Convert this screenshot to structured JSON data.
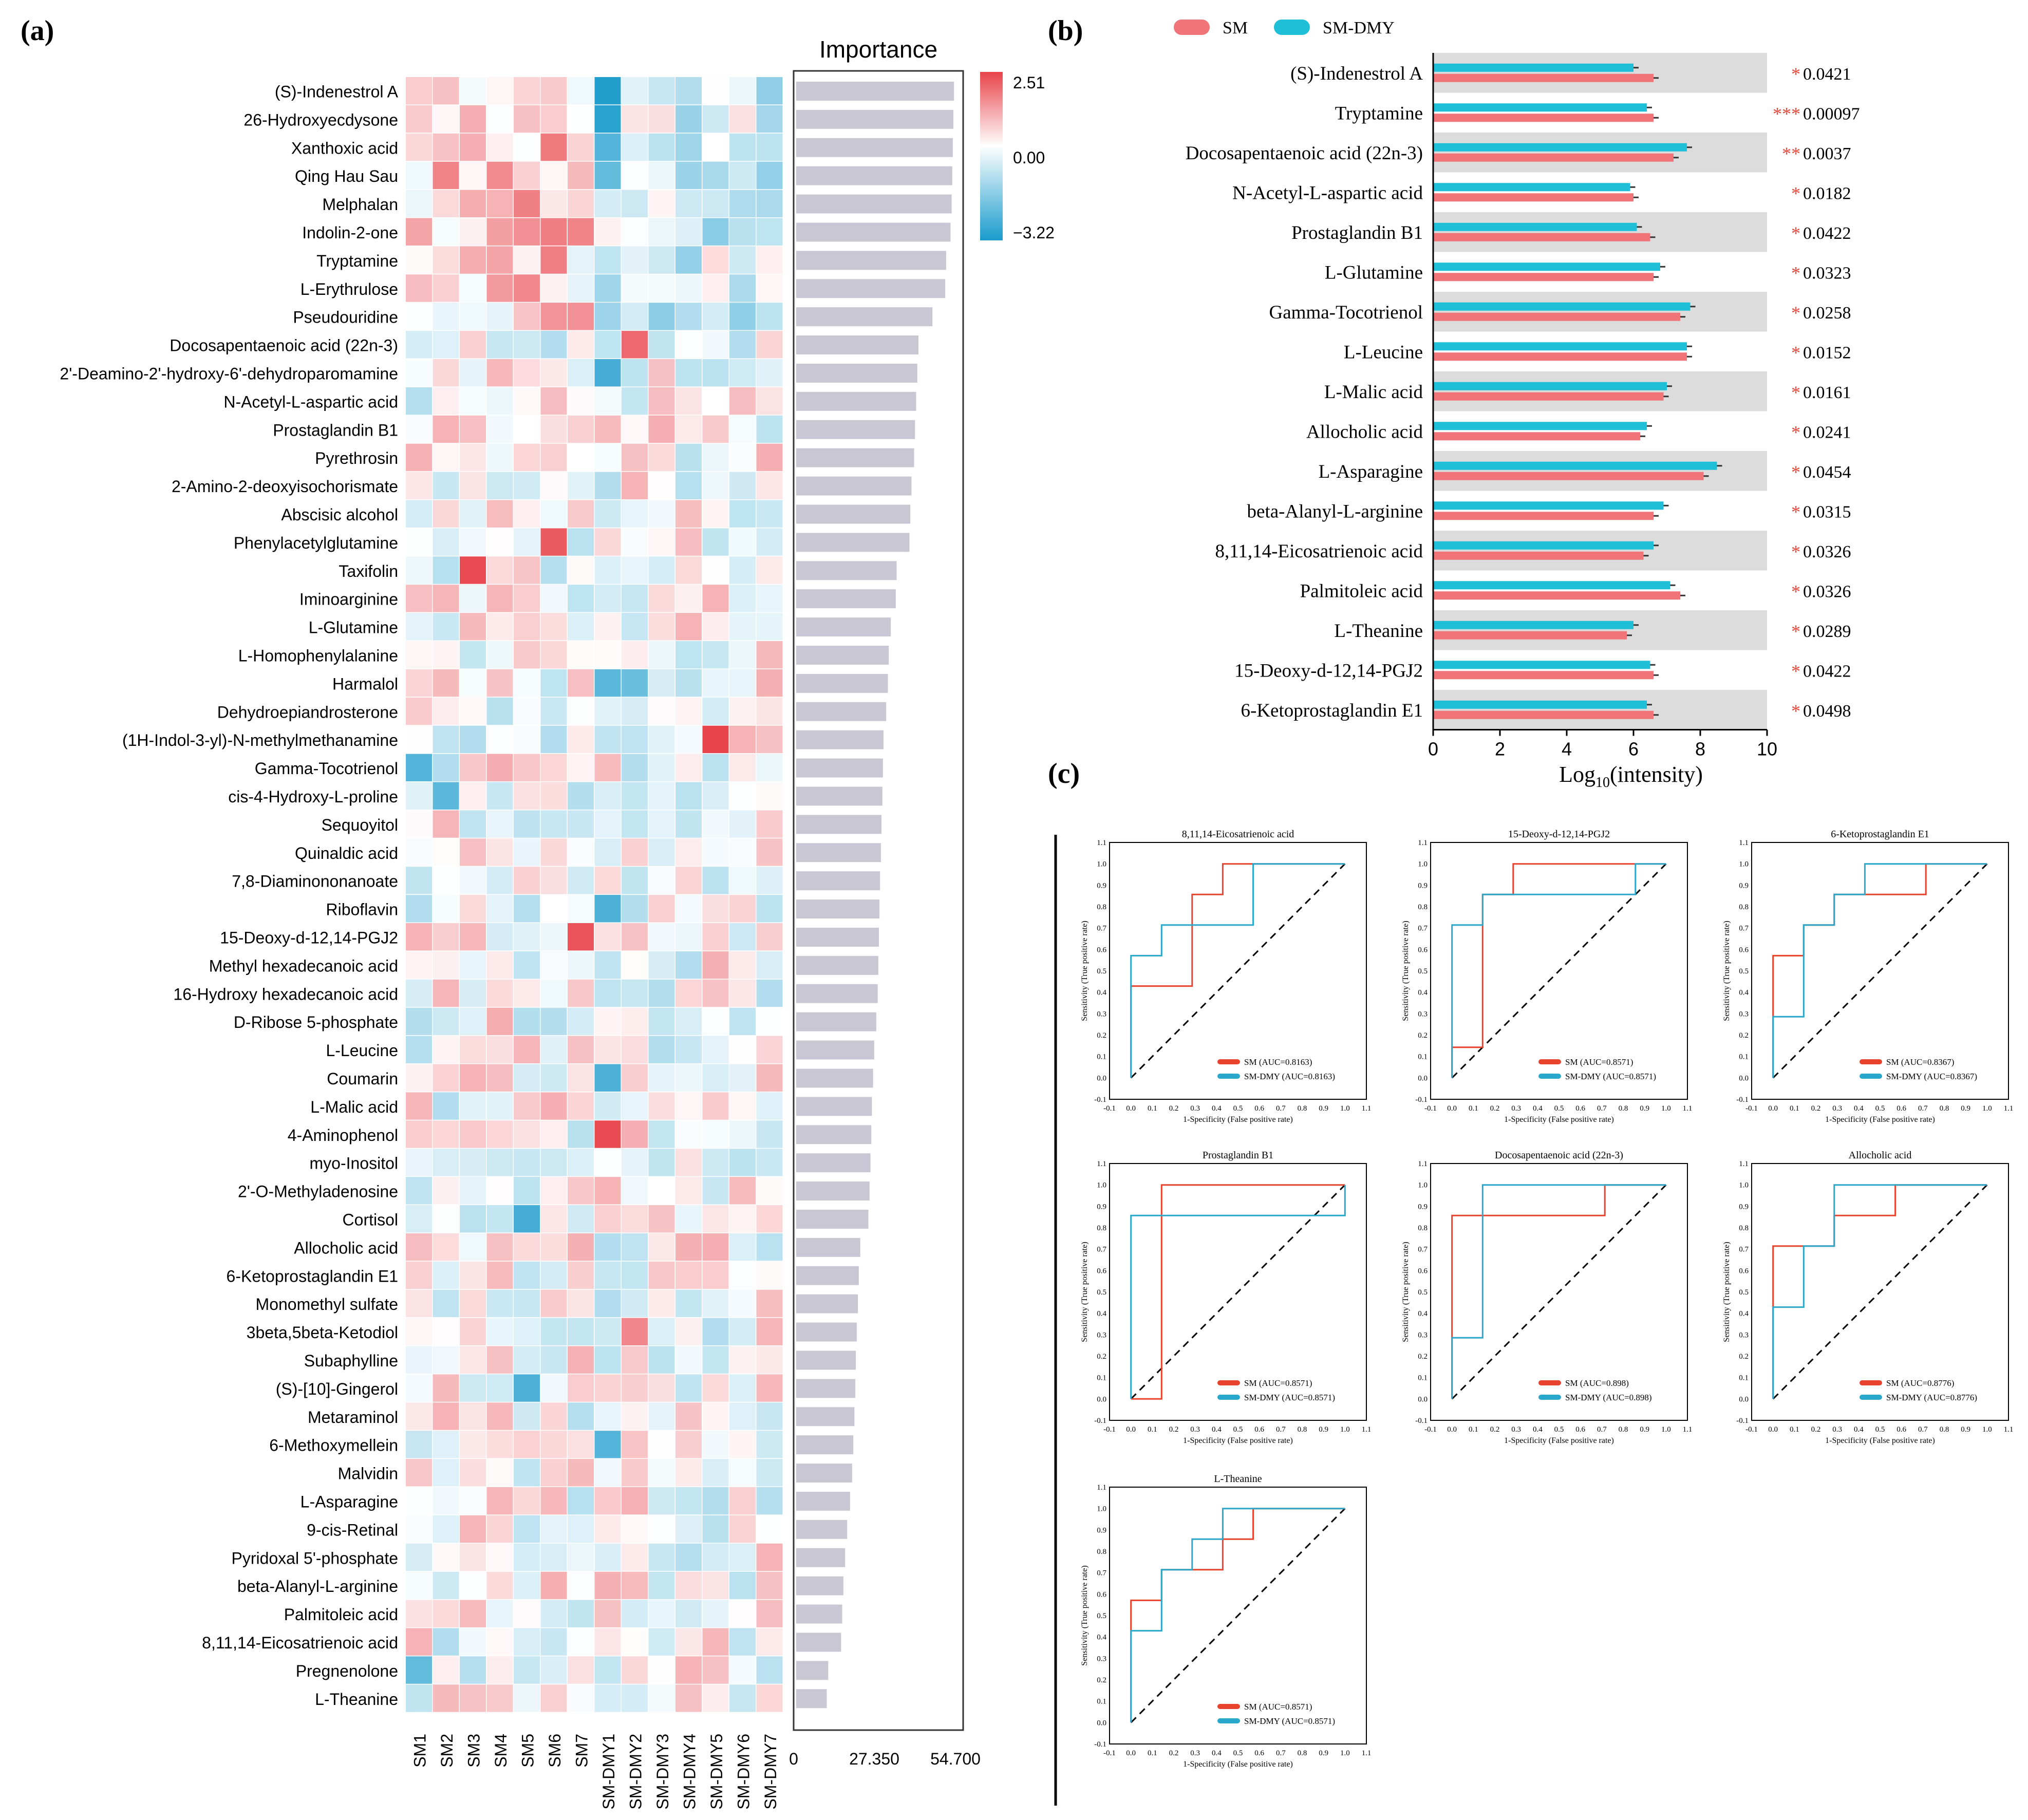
{
  "colors": {
    "heat_high": "#e8434a",
    "heat_mid": "#ffffff",
    "heat_low": "#1a9bcc",
    "importance_bar": "#c8c7d3",
    "sm": "#f07478",
    "sm_dmy": "#1fbfd8",
    "roc_sm": "#e8432d",
    "roc_dmy": "#2aa8cc",
    "band": "#dcdcdc",
    "sig": "#e8473c"
  },
  "panel_labels": {
    "a": "(a)",
    "b": "(b)",
    "c": "(c)"
  },
  "chart_data": [
    {
      "id": "heatmap",
      "type": "heatmap",
      "samples": [
        "SM1",
        "SM2",
        "SM3",
        "SM4",
        "SM5",
        "SM6",
        "SM7",
        "SM-DMY1",
        "SM-DMY2",
        "SM-DMY3",
        "SM-DMY4",
        "SM-DMY5",
        "SM-DMY6",
        "SM-DMY7"
      ],
      "metabolites": [
        "(S)-Indenestrol A",
        "26-Hydroxyecdysone",
        "Xanthoxic acid",
        "Qing Hau Sau",
        "Melphalan",
        "Indolin-2-one",
        "Tryptamine",
        "L-Erythrulose",
        "Pseudouridine",
        "Docosapentaenoic acid (22n-3)",
        "2'-Deamino-2'-hydroxy-6'-dehydroparomamine",
        "N-Acetyl-L-aspartic acid",
        "Prostaglandin B1",
        "Pyrethrosin",
        "2-Amino-2-deoxyisochorismate",
        "Abscisic alcohol",
        "Phenylacetylglutamine",
        "Taxifolin",
        "Iminoarginine",
        "L-Glutamine",
        "L-Homophenylalanine",
        "Harmalol",
        "Dehydroepiandrosterone",
        "(1H-Indol-3-yl)-N-methylmethanamine",
        "Gamma-Tocotrienol",
        "cis-4-Hydroxy-L-proline",
        "Sequoyitol",
        "Quinaldic acid",
        "7,8-Diaminononanoate",
        "Riboflavin",
        "15-Deoxy-d-12,14-PGJ2",
        "Methyl hexadecanoic acid",
        "16-Hydroxy hexadecanoic acid",
        "D-Ribose 5-phosphate",
        "L-Leucine",
        "Coumarin",
        "L-Malic acid",
        "4-Aminophenol",
        "myo-Inositol",
        "2'-O-Methyladenosine",
        "Cortisol",
        "Allocholic acid",
        "6-Ketoprostaglandin E1",
        "Monomethyl sulfate",
        "3beta,5beta-Ketodiol",
        "Subaphylline",
        "(S)-[10]-Gingerol",
        "Metaraminol",
        "6-Methoxymellein",
        "Malvidin",
        "L-Asparagine",
        "9-cis-Retinal",
        "Pyridoxal 5'-phosphate",
        "beta-Alanyl-L-arginine",
        "Palmitoleic acid",
        "8,11,14-Eicosatrienoic acid",
        "Pregnenolone",
        "L-Theanine"
      ],
      "color_scale": {
        "max": 2.51,
        "mid": 0.0,
        "min": -3.22,
        "tick_labels": [
          "2.51",
          "0.00",
          "−3.22"
        ]
      },
      "importance": {
        "title": "Importance",
        "axis_ticks": [
          "0",
          "27.350",
          "54.700"
        ],
        "xlim": [
          0,
          54.7
        ],
        "values": [
          54.2,
          54.0,
          53.8,
          53.6,
          53.4,
          53.0,
          51.5,
          51.2,
          46.8,
          42.0,
          41.6,
          41.2,
          40.8,
          40.5,
          39.6,
          39.2,
          38.9,
          34.5,
          34.2,
          32.5,
          31.8,
          31.5,
          30.9,
          30.0,
          29.8,
          29.6,
          29.3,
          29.1,
          28.8,
          28.6,
          28.4,
          28.2,
          28.0,
          27.5,
          26.8,
          26.4,
          26.0,
          25.8,
          25.5,
          25.2,
          24.8,
          22.0,
          21.5,
          21.2,
          20.8,
          20.5,
          20.3,
          20.0,
          19.6,
          19.2,
          18.5,
          17.5,
          16.8,
          16.2,
          15.8,
          15.4,
          11.0,
          10.5
        ]
      }
    },
    {
      "id": "bar",
      "type": "bar",
      "orientation": "horizontal",
      "legend": [
        "SM",
        "SM-DMY"
      ],
      "categories": [
        "(S)-Indenestrol A",
        "Tryptamine",
        "Docosapentaenoic acid (22n-3)",
        "N-Acetyl-L-aspartic acid",
        "Prostaglandin B1",
        "L-Glutamine",
        "Gamma-Tocotrienol",
        "L-Leucine",
        "L-Malic acid",
        "Allocholic acid",
        "L-Asparagine",
        "beta-Alanyl-L-arginine",
        "8,11,14-Eicosatrienoic acid",
        "Palmitoleic acid",
        "L-Theanine",
        "15-Deoxy-d-12,14-PGJ2",
        "6-Ketoprostaglandin E1"
      ],
      "series": [
        {
          "name": "SM",
          "values": [
            6.6,
            6.6,
            7.2,
            6.0,
            6.5,
            6.6,
            7.4,
            7.6,
            6.9,
            6.2,
            8.1,
            6.6,
            6.3,
            7.4,
            5.8,
            6.6,
            6.6
          ]
        },
        {
          "name": "SM-DMY",
          "values": [
            6.0,
            6.4,
            7.6,
            5.9,
            6.1,
            6.8,
            7.7,
            7.6,
            7.0,
            6.4,
            8.5,
            6.9,
            6.6,
            7.1,
            6.0,
            6.5,
            6.4
          ]
        }
      ],
      "significance": [
        "*",
        "***",
        "**",
        "*",
        "*",
        "*",
        "*",
        "*",
        "*",
        "*",
        "*",
        "*",
        "*",
        "*",
        "*",
        "*",
        "*"
      ],
      "p_values": [
        "0.0421",
        "0.00097",
        "0.0037",
        "0.0182",
        "0.0422",
        "0.0323",
        "0.0258",
        "0.0152",
        "0.0161",
        "0.0241",
        "0.0454",
        "0.0315",
        "0.0326",
        "0.0326",
        "0.0289",
        "0.0422",
        "0.0498"
      ],
      "xlabel_main": "Log",
      "xlabel_sub": "10",
      "xlabel_rest": "(intensity)",
      "xlim": [
        0,
        10
      ],
      "xticks": [
        "0",
        "2",
        "4",
        "6",
        "8",
        "10"
      ]
    },
    {
      "id": "roc",
      "type": "line",
      "axis_ticks": [
        "-0.1",
        "0.0",
        "0.1",
        "0.2",
        "0.3",
        "0.4",
        "0.5",
        "0.6",
        "0.7",
        "0.8",
        "0.9",
        "1.0",
        "1.1"
      ],
      "xlabel": "1-Specificity (False positive rate)",
      "ylabel": "Sensitivity (True positive rate)",
      "panels": [
        {
          "title": "8,11,14-Eicosatrienoic acid",
          "sm_label": "SM (AUC=0.8163)",
          "dmy_label": "SM-DMY (AUC=0.8163)",
          "sm_fpr": [
            0,
            0,
            0.286,
            0.286,
            0.429,
            0.429,
            1.0
          ],
          "sm_tpr": [
            0,
            0.429,
            0.429,
            0.857,
            0.857,
            1.0,
            1.0
          ],
          "dmy_fpr": [
            0,
            0,
            0.143,
            0.143,
            0.571,
            0.571,
            1.0
          ],
          "dmy_tpr": [
            0,
            0.571,
            0.571,
            0.714,
            0.714,
            1.0,
            1.0
          ]
        },
        {
          "title": "15-Deoxy-d-12,14-PGJ2",
          "sm_label": "SM (AUC=0.8571)",
          "dmy_label": "SM-DMY (AUC=0.8571)",
          "sm_fpr": [
            0,
            0,
            0.143,
            0.143,
            0.286,
            0.286,
            1.0
          ],
          "sm_tpr": [
            0,
            0.143,
            0.143,
            0.857,
            0.857,
            1.0,
            1.0
          ],
          "dmy_fpr": [
            0,
            0,
            0.143,
            0.143,
            0.857,
            0.857,
            1.0
          ],
          "dmy_tpr": [
            0,
            0.714,
            0.714,
            0.857,
            0.857,
            1.0,
            1.0
          ]
        },
        {
          "title": "6-Ketoprostaglandin E1",
          "sm_label": "SM (AUC=0.8367)",
          "dmy_label": "SM-DMY (AUC=0.8367)",
          "sm_fpr": [
            0,
            0,
            0.143,
            0.143,
            0.286,
            0.286,
            0.714,
            0.714,
            1.0
          ],
          "sm_tpr": [
            0,
            0.571,
            0.571,
            0.714,
            0.714,
            0.857,
            0.857,
            1.0,
            1.0
          ],
          "dmy_fpr": [
            0,
            0,
            0.143,
            0.143,
            0.286,
            0.286,
            0.429,
            0.429,
            1.0
          ],
          "dmy_tpr": [
            0,
            0.286,
            0.286,
            0.714,
            0.714,
            0.857,
            0.857,
            1.0,
            1.0
          ]
        },
        {
          "title": "Prostaglandin B1",
          "sm_label": "SM (AUC=0.8571)",
          "dmy_label": "SM-DMY (AUC=0.8571)",
          "sm_fpr": [
            0,
            0.143,
            0.143,
            1.0
          ],
          "sm_tpr": [
            0,
            0,
            1.0,
            1.0
          ],
          "dmy_fpr": [
            0,
            0,
            1.0,
            1.0
          ],
          "dmy_tpr": [
            0,
            0.857,
            0.857,
            1.0
          ]
        },
        {
          "title": "Docosapentaenoic acid (22n-3)",
          "sm_label": "SM (AUC=0.898)",
          "dmy_label": "SM-DMY (AUC=0.898)",
          "sm_fpr": [
            0,
            0,
            0.714,
            0.714,
            1.0
          ],
          "sm_tpr": [
            0,
            0.857,
            0.857,
            1.0,
            1.0
          ],
          "dmy_fpr": [
            0,
            0,
            0.143,
            0.143,
            1.0
          ],
          "dmy_tpr": [
            0,
            0.286,
            0.286,
            1.0,
            1.0
          ]
        },
        {
          "title": "Allocholic acid",
          "sm_label": "SM (AUC=0.8776)",
          "dmy_label": "SM-DMY (AUC=0.8776)",
          "sm_fpr": [
            0,
            0,
            0.143,
            0.143,
            0.286,
            0.286,
            0.571,
            0.571,
            1.0
          ],
          "sm_tpr": [
            0,
            0.714,
            0.714,
            0.714,
            0.714,
            0.857,
            0.857,
            1.0,
            1.0
          ],
          "dmy_fpr": [
            0,
            0,
            0.143,
            0.143,
            0.286,
            0.286,
            1.0
          ],
          "dmy_tpr": [
            0,
            0.429,
            0.429,
            0.714,
            0.714,
            1.0,
            1.0
          ]
        },
        {
          "title": "L-Theanine",
          "sm_label": "SM (AUC=0.8571)",
          "dmy_label": "SM-DMY (AUC=0.8571)",
          "sm_fpr": [
            0,
            0,
            0.143,
            0.143,
            0.429,
            0.429,
            0.571,
            0.571,
            1.0
          ],
          "sm_tpr": [
            0,
            0.571,
            0.571,
            0.714,
            0.714,
            0.857,
            0.857,
            1.0,
            1.0
          ],
          "dmy_fpr": [
            0,
            0,
            0.143,
            0.143,
            0.286,
            0.286,
            0.429,
            0.429,
            1.0
          ],
          "dmy_tpr": [
            0,
            0.429,
            0.429,
            0.714,
            0.714,
            0.857,
            0.857,
            1.0,
            1.0
          ]
        }
      ]
    }
  ]
}
